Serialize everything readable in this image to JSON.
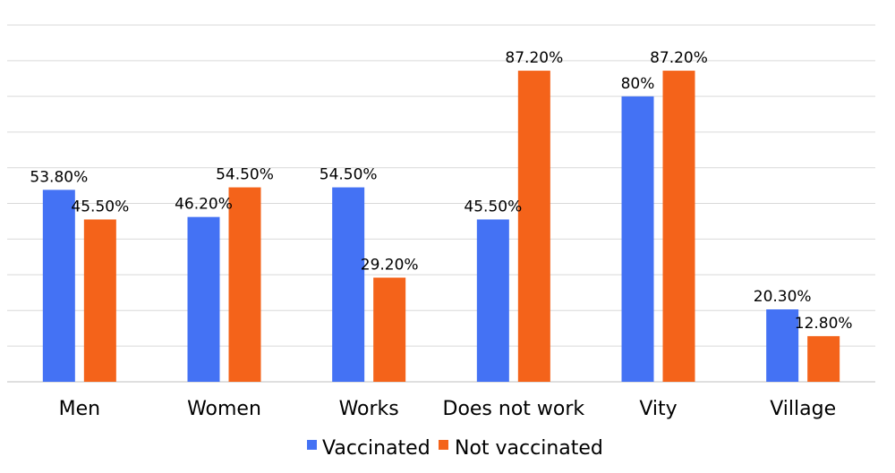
{
  "chart_data": {
    "type": "bar",
    "categories": [
      "Men",
      "Women",
      "Works",
      "Does not work",
      "Vity",
      "Village"
    ],
    "series": [
      {
        "name": "Vaccinated",
        "color": "#4472f4",
        "values": [
          53.8,
          46.2,
          54.5,
          45.5,
          80,
          20.3
        ],
        "labels": [
          "53.80%",
          "46.20%",
          "54.50%",
          "45.50%",
          "80%",
          "20.30%"
        ]
      },
      {
        "name": "Not vaccinated",
        "color": "#f4631a",
        "values": [
          45.5,
          54.5,
          29.2,
          87.2,
          87.2,
          12.8
        ],
        "labels": [
          "45.50%",
          "54.50%",
          "29.20%",
          "87.20%",
          "87.20%",
          "12.80%"
        ]
      }
    ],
    "ylim": [
      0,
      100
    ],
    "grid": true,
    "legend_position": "bottom"
  }
}
